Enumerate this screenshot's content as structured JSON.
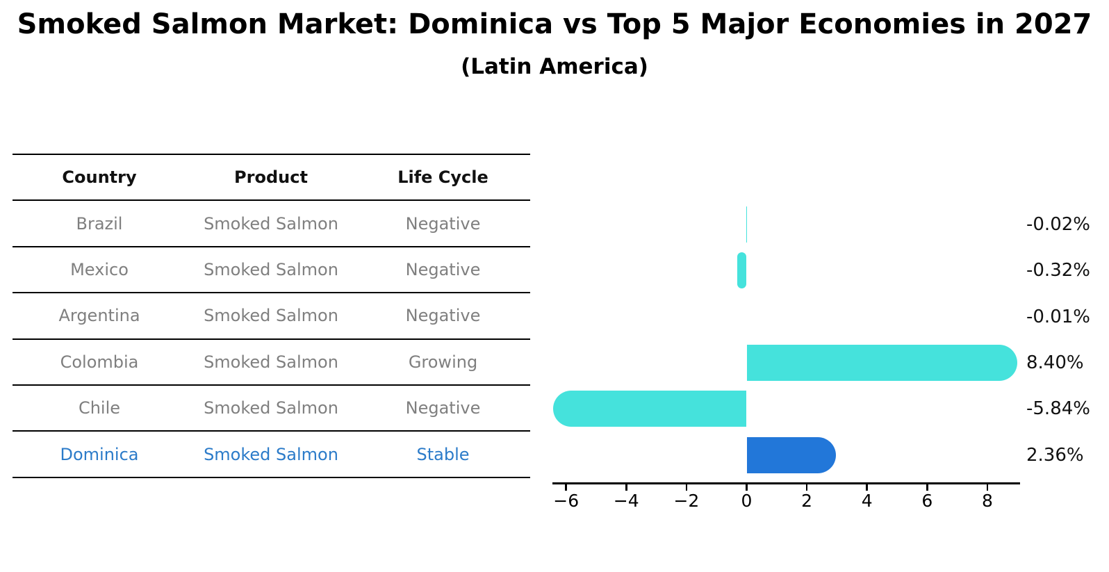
{
  "title": "Smoked Salmon Market: Dominica vs Top 5 Major Economies in 2027",
  "subtitle": "(Latin America)",
  "table": {
    "headers": [
      "Country",
      "Product",
      "Life Cycle"
    ],
    "rows": [
      {
        "country": "Brazil",
        "product": "Smoked Salmon",
        "life_cycle": "Negative",
        "highlight": false
      },
      {
        "country": "Mexico",
        "product": "Smoked Salmon",
        "life_cycle": "Negative",
        "highlight": false
      },
      {
        "country": "Argentina",
        "product": "Smoked Salmon",
        "life_cycle": "Negative",
        "highlight": false
      },
      {
        "country": "Colombia",
        "product": "Smoked Salmon",
        "life_cycle": "Growing",
        "highlight": false
      },
      {
        "country": "Chile",
        "product": "Smoked Salmon",
        "life_cycle": "Negative",
        "highlight": false
      },
      {
        "country": "Dominica",
        "product": "Smoked Salmon",
        "life_cycle": "Stable",
        "highlight": true
      }
    ]
  },
  "chart_data": {
    "type": "bar",
    "orientation": "horizontal",
    "title": "Smoked Salmon Market: Dominica vs Top 5 Major Economies in 2027 (Latin America)",
    "categories": [
      "Brazil",
      "Mexico",
      "Argentina",
      "Colombia",
      "Chile",
      "Dominica"
    ],
    "values": [
      -0.02,
      -0.32,
      -0.01,
      8.4,
      -5.84,
      2.36
    ],
    "value_labels": [
      "-0.02%",
      "-0.32%",
      "-0.01%",
      "8.40%",
      "-5.84%",
      "2.36%"
    ],
    "xticks": [
      -6,
      -4,
      -2,
      0,
      2,
      4,
      6,
      8
    ],
    "xtick_labels": [
      "−6",
      "−4",
      "−2",
      "0",
      "2",
      "4",
      "6",
      "8"
    ],
    "xlim": [
      -6.5,
      9.1
    ],
    "grid": false,
    "legend": false,
    "bar_color": "#45E2DC",
    "highlight_color": "#2277D9",
    "highlight_index": 5,
    "highlight_style": "dotted-outline",
    "highlight_text_color": "#2b7bc9"
  }
}
